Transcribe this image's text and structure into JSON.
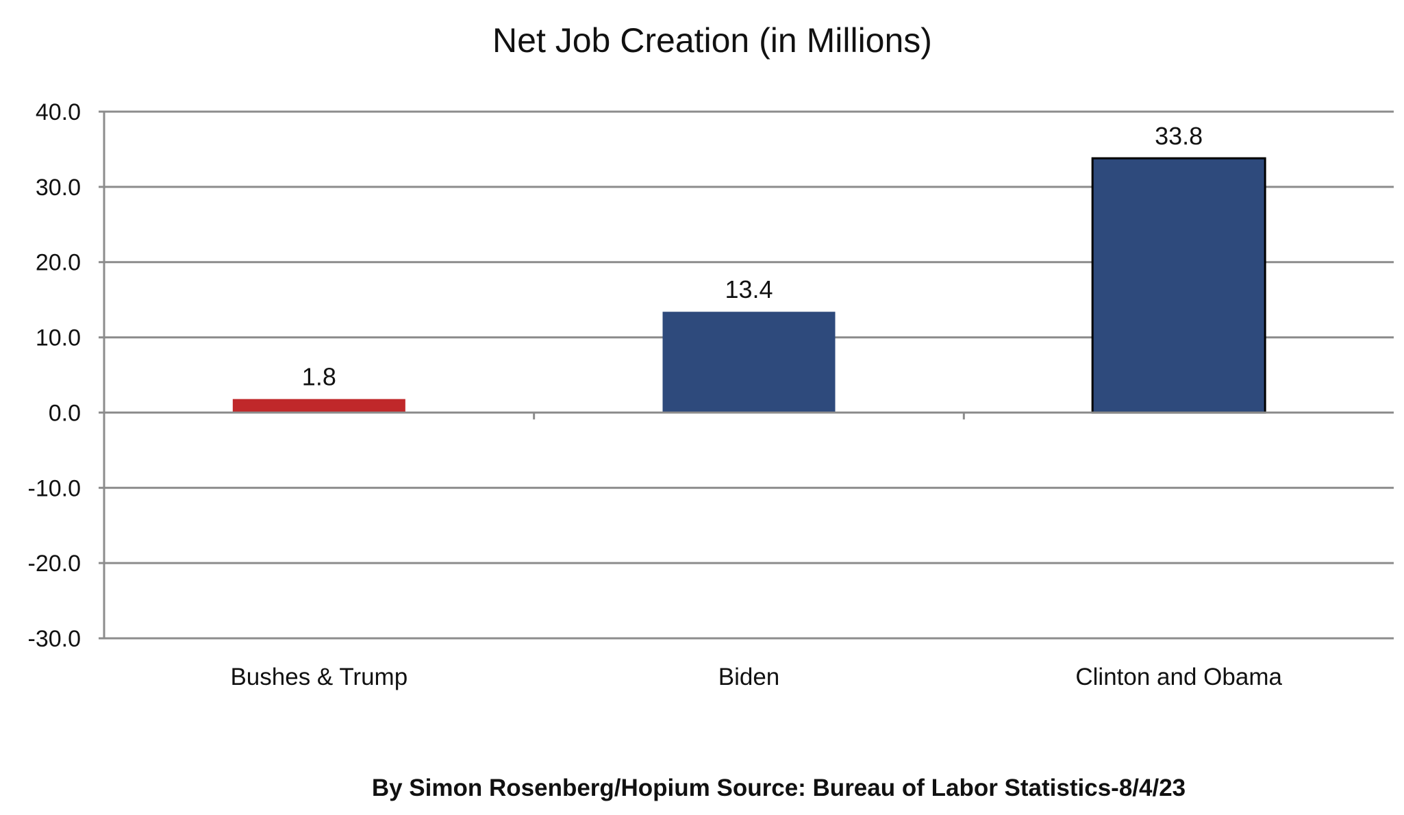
{
  "chart_data": {
    "type": "bar",
    "title": "Net Job Creation (in Millions)",
    "categories": [
      "Bushes & Trump",
      "Biden",
      "Clinton and Obama"
    ],
    "values": [
      1.8,
      13.4,
      33.8
    ],
    "value_labels": [
      "1.8",
      "13.4",
      "33.8"
    ],
    "bar_colors": [
      "#c0282a",
      "#2e4a7c",
      "#2e4a7c"
    ],
    "bar_outline": [
      false,
      false,
      true
    ],
    "ylim": [
      -30,
      40
    ],
    "yticks": [
      40,
      30,
      20,
      10,
      0,
      -10,
      -20,
      -30
    ],
    "ytick_labels": [
      "40.0",
      "30.0",
      "20.0",
      "10.0",
      "0.0",
      "-10.0",
      "-20.0",
      "-30.0"
    ],
    "grid": true,
    "xlabel": "",
    "ylabel": ""
  },
  "footer": "By Simon Rosenberg/Hopium Source: Bureau of Labor Statistics-8/4/23"
}
